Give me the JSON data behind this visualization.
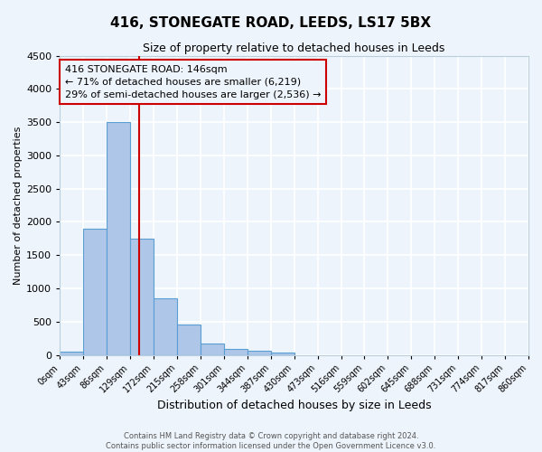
{
  "title": "416, STONEGATE ROAD, LEEDS, LS17 5BX",
  "subtitle": "Size of property relative to detached houses in Leeds",
  "xlabel": "Distribution of detached houses by size in Leeds",
  "ylabel": "Number of detached properties",
  "bin_edges": [
    0,
    43,
    86,
    129,
    172,
    215,
    258,
    301,
    344,
    387,
    430,
    473,
    516,
    559,
    602,
    645,
    688,
    731,
    774,
    817,
    860
  ],
  "bar_heights": [
    50,
    1900,
    3500,
    1750,
    850,
    450,
    175,
    90,
    55,
    35,
    0,
    0,
    0,
    0,
    0,
    0,
    0,
    0,
    0,
    0
  ],
  "bar_color": "#aec6e8",
  "bar_edgecolor": "#5a9fd4",
  "background_color": "#eef4fb",
  "grid_color": "#ffffff",
  "ylim": [
    0,
    4500
  ],
  "xlim": [
    0,
    860
  ],
  "property_size": 146,
  "vline_color": "#cc0000",
  "annotation_line1": "416 STONEGATE ROAD: 146sqm",
  "annotation_line2": "← 71% of detached houses are smaller (6,219)",
  "annotation_line3": "29% of semi-detached houses are larger (2,536) →",
  "annotation_box_edgecolor": "#cc0000",
  "footer_line1": "Contains HM Land Registry data © Crown copyright and database right 2024.",
  "footer_line2": "Contains public sector information licensed under the Open Government Licence v3.0.",
  "tick_labels": [
    "0sqm",
    "43sqm",
    "86sqm",
    "129sqm",
    "172sqm",
    "215sqm",
    "258sqm",
    "301sqm",
    "344sqm",
    "387sqm",
    "430sqm",
    "473sqm",
    "516sqm",
    "559sqm",
    "602sqm",
    "645sqm",
    "688sqm",
    "731sqm",
    "774sqm",
    "817sqm",
    "860sqm"
  ],
  "title_fontsize": 11,
  "subtitle_fontsize": 9,
  "ylabel_fontsize": 8,
  "xlabel_fontsize": 9,
  "ytick_fontsize": 8,
  "xtick_fontsize": 7,
  "annotation_fontsize": 8,
  "footer_fontsize": 6
}
